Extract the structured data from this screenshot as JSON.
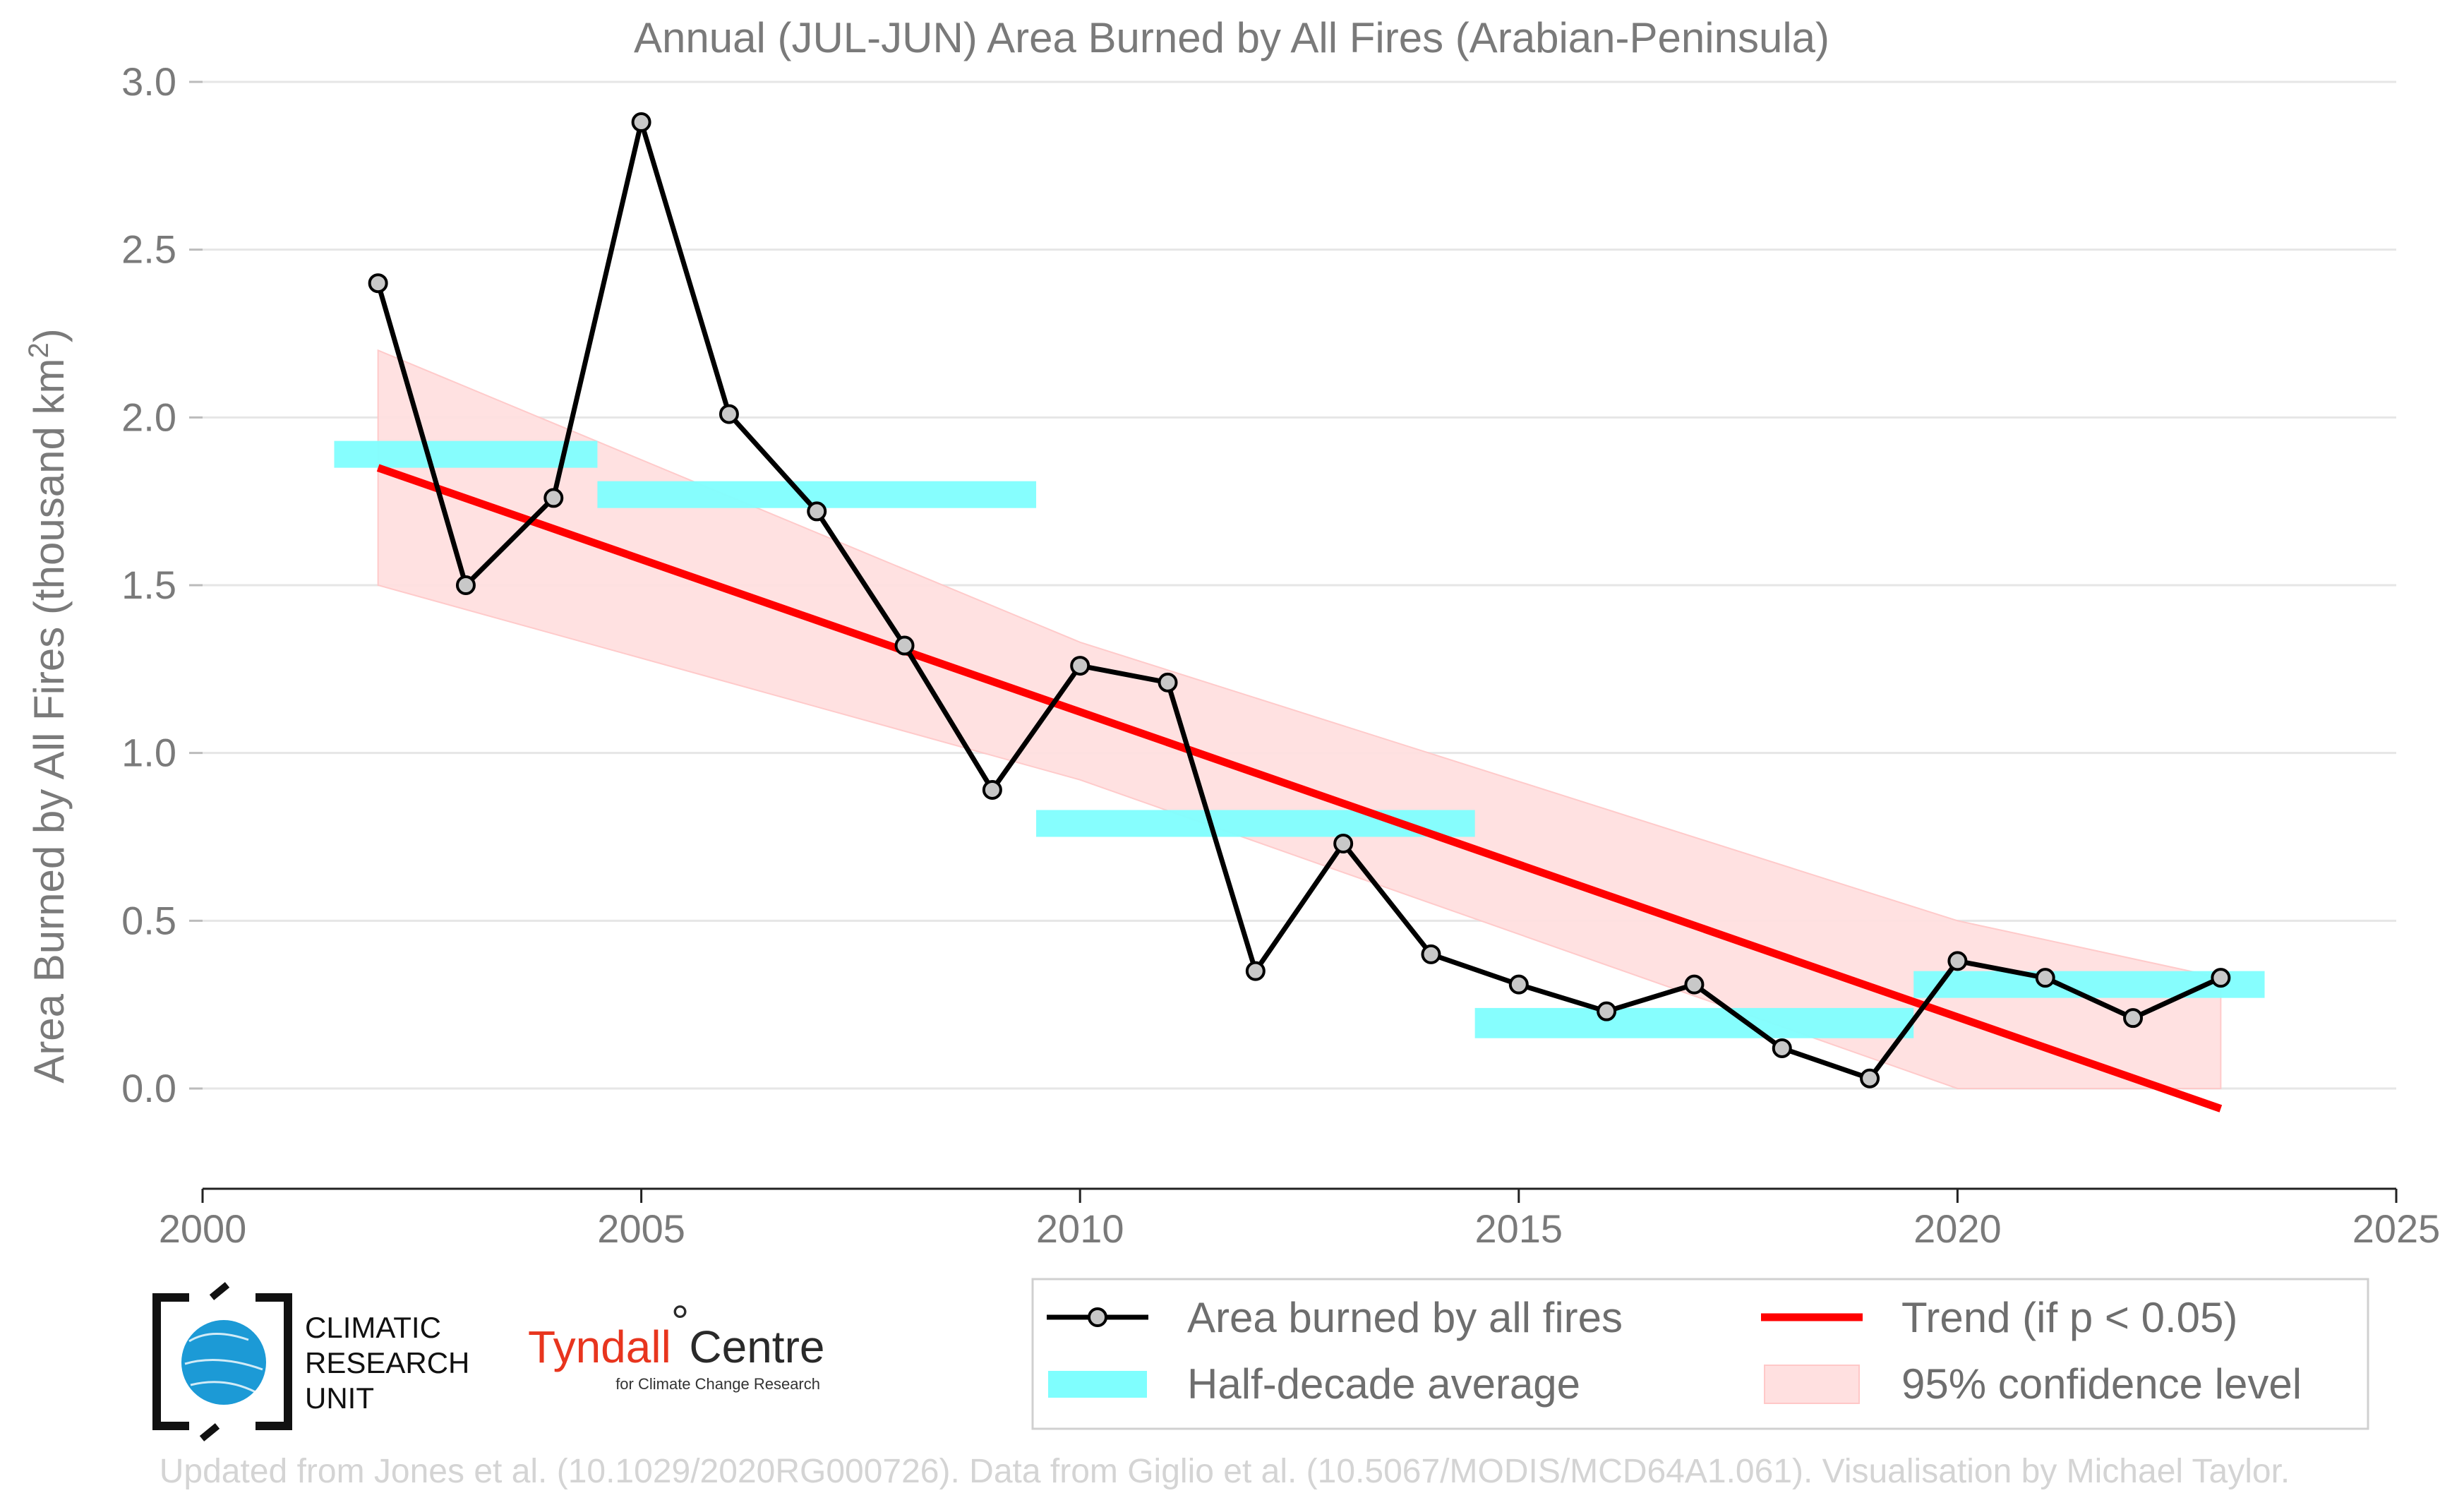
{
  "chart_data": {
    "type": "line",
    "title": "Annual (JUL-JUN) Area Burned by All Fires (Arabian-Peninsula)",
    "ylabel": "Area Burned by All Fires (thousand km²)",
    "ylabel_main": "Area Burned by All Fires (thousand km",
    "ylabel_sup": "2",
    "ylabel_close": ")",
    "xlim": [
      2000,
      2025
    ],
    "ylim": [
      -0.3,
      3.0
    ],
    "xticks": [
      "2000",
      "2005",
      "2010",
      "2015",
      "2020",
      "2025"
    ],
    "yticks": [
      "0.0",
      "0.5",
      "1.0",
      "1.5",
      "2.0",
      "2.5",
      "3.0"
    ],
    "grid": "horizontal",
    "series": [
      {
        "name": "Area burned by all fires",
        "color": "#000000",
        "marker_color": "#c8c8c8",
        "x": [
          2002,
          2003,
          2004,
          2005,
          2006,
          2007,
          2008,
          2009,
          2010,
          2011,
          2012,
          2013,
          2014,
          2015,
          2016,
          2017,
          2018,
          2019,
          2020,
          2021,
          2022,
          2023
        ],
        "y": [
          2.4,
          1.5,
          1.76,
          2.88,
          2.01,
          1.72,
          1.32,
          0.89,
          1.26,
          1.21,
          0.35,
          0.73,
          0.4,
          0.31,
          0.23,
          0.31,
          0.12,
          0.03,
          0.38,
          0.33,
          0.21,
          0.33
        ]
      }
    ],
    "half_decade_average": {
      "name": "Half-decade average",
      "color": "#7ffefe",
      "segments": [
        {
          "x0": 2001.5,
          "x1": 2004.5,
          "y0": 1.85,
          "y1": 1.93
        },
        {
          "x0": 2004.5,
          "x1": 2009.5,
          "y0": 1.73,
          "y1": 1.81
        },
        {
          "x0": 2009.5,
          "x1": 2014.5,
          "y0": 0.75,
          "y1": 0.83
        },
        {
          "x0": 2014.5,
          "x1": 2019.5,
          "y0": 0.15,
          "y1": 0.24
        },
        {
          "x0": 2019.5,
          "x1": 2023.5,
          "y0": 0.27,
          "y1": 0.35
        }
      ]
    },
    "trend": {
      "name": "Trend (if p < 0.05)",
      "color": "#ff0000",
      "x": [
        2002,
        2023
      ],
      "y": [
        1.85,
        -0.06
      ]
    },
    "confidence": {
      "name": "95% confidence level",
      "color": "#ffe0e0",
      "x": [
        2002,
        2010,
        2020,
        2023
      ],
      "upper": [
        2.2,
        1.33,
        0.5,
        0.33
      ],
      "lower": [
        1.5,
        0.92,
        0.0,
        0.0
      ]
    },
    "legend_position": "bottom-right",
    "legend": [
      "Area burned by all fires",
      "Trend (if p < 0.05)",
      "Half-decade average",
      "95% confidence level"
    ]
  },
  "logos": {
    "cru_line1": "CLIMATIC",
    "cru_line2": "RESEARCH",
    "cru_line3": "UNIT",
    "tyndall_main": "Tyndall",
    "tyndall_degree": "°",
    "tyndall_centre": "Centre",
    "tyndall_sub": "for Climate Change Research"
  },
  "credit": "Updated from Jones et al. (10.1029/2020RG000726). Data from Giglio et al. (10.5067/MODIS/MCD64A1.061). Visualisation by Michael Taylor."
}
